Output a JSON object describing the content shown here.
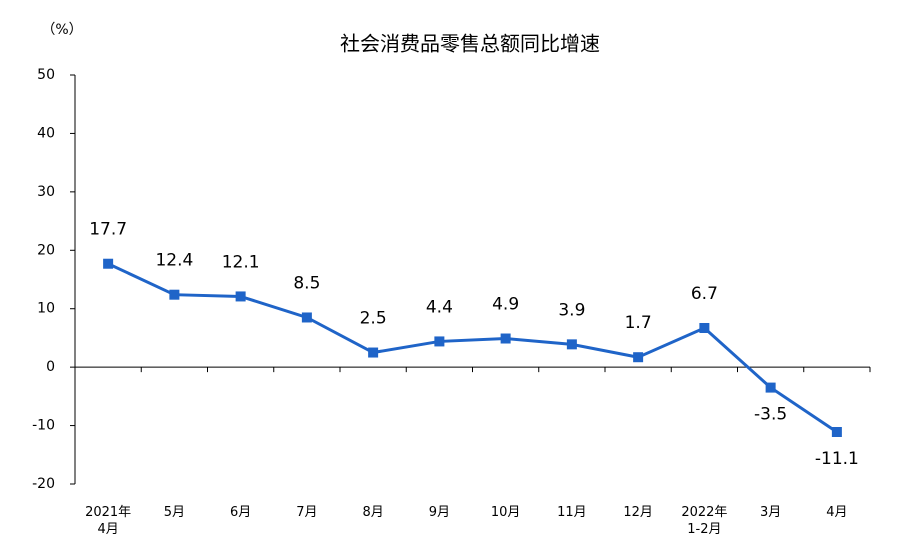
{
  "chart_data": {
    "type": "line",
    "title": "社会消费品零售总额同比增速",
    "y_label": "（%）",
    "categories": [
      "2021年\n4月",
      "5月",
      "6月",
      "7月",
      "8月",
      "9月",
      "10月",
      "11月",
      "12月",
      "2022年\n1-2月",
      "3月",
      "4月"
    ],
    "series": [
      {
        "name": "社会消费品零售总额同比增速",
        "color": "#1f64c8",
        "values": [
          17.7,
          12.4,
          12.1,
          8.5,
          2.5,
          4.4,
          4.9,
          3.9,
          1.7,
          6.7,
          -3.5,
          -11.1
        ]
      }
    ],
    "ylim": [
      -20,
      50
    ],
    "yticks": [
      -20,
      -10,
      0,
      10,
      20,
      30,
      40,
      50
    ],
    "grid": false
  }
}
